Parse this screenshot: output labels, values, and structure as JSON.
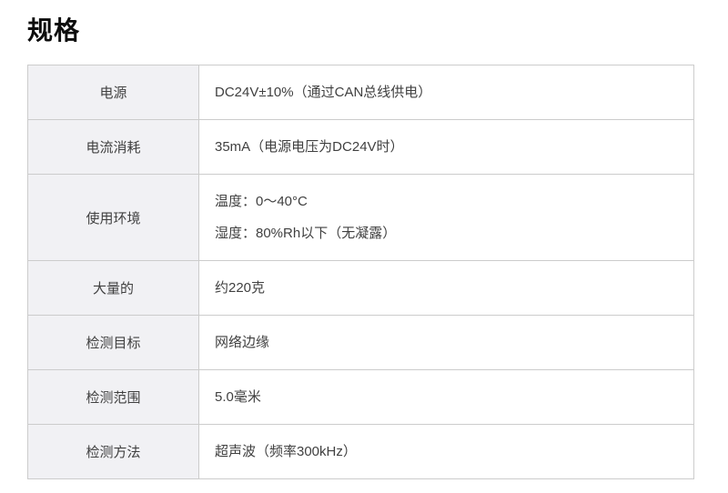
{
  "page": {
    "title": "规格"
  },
  "colors": {
    "page_background": "#ffffff",
    "table_border": "#cccccc",
    "label_cell_background": "#f1f1f4",
    "value_cell_background": "#ffffff",
    "body_text": "#404040",
    "title_text": "#0d0d0d"
  },
  "spec_table": {
    "rows": [
      {
        "label": "电源",
        "lines": [
          "DC24V±10%（通过CAN总线供电）"
        ]
      },
      {
        "label": "电流消耗",
        "lines": [
          "35mA（电源电压为DC24V时）"
        ]
      },
      {
        "label": "使用环境",
        "lines": [
          "温度：0～40°C",
          "湿度：80%Rh以下（无凝露）"
        ]
      },
      {
        "label": "大量的",
        "lines": [
          "约220克"
        ]
      },
      {
        "label": "检测目标",
        "lines": [
          "网络边缘"
        ]
      },
      {
        "label": "检测范围",
        "lines": [
          "5.0毫米"
        ]
      },
      {
        "label": "检测方法",
        "lines": [
          "超声波（频率300kHz）"
        ]
      }
    ]
  }
}
